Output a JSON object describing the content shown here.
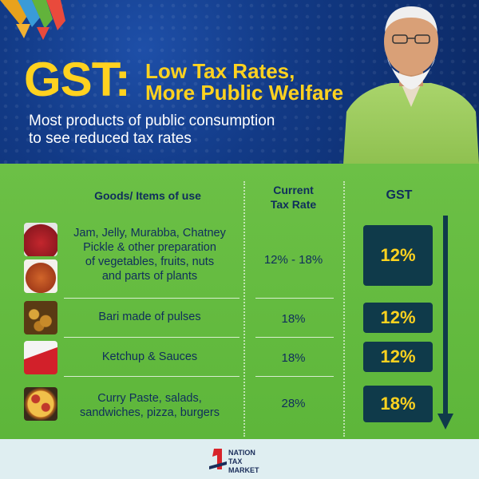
{
  "header": {
    "gst": "GST:",
    "headline_line1": "Low Tax Rates,",
    "headline_line2": "More Public Welfare",
    "tagline_line1": "Most products of public consumption",
    "tagline_line2": "to see reduced tax rates"
  },
  "table": {
    "col_goods": "Goods/ Items of use",
    "col_current_line1": "Current",
    "col_current_line2": "Tax Rate",
    "col_gst": "GST",
    "rows": [
      {
        "item_lines": [
          "Jam, Jelly, Murabba, Chatney",
          "Pickle & other preparation",
          "of vegetables, fruits, nuts",
          "and parts of plants"
        ],
        "current": "12% - 18%",
        "gst": "12%"
      },
      {
        "item_lines": [
          "Bari made of pulses"
        ],
        "current": "18%",
        "gst": "12%"
      },
      {
        "item_lines": [
          "Ketchup & Sauces"
        ],
        "current": "18%",
        "gst": "12%"
      },
      {
        "item_lines": [
          "Curry Paste, salads,",
          "sandwiches, pizza, burgers"
        ],
        "current": "28%",
        "gst": "18%"
      }
    ]
  },
  "footer": {
    "brand_line1": "NATION",
    "brand_line2": "TAX",
    "brand_line3": "MARKET"
  },
  "colors": {
    "header_blue": "#123a86",
    "accent_yellow": "#ffd21f",
    "table_green": "#5db63a",
    "gst_box": "#0f3a4a",
    "text_navy": "#0f2d5c"
  }
}
